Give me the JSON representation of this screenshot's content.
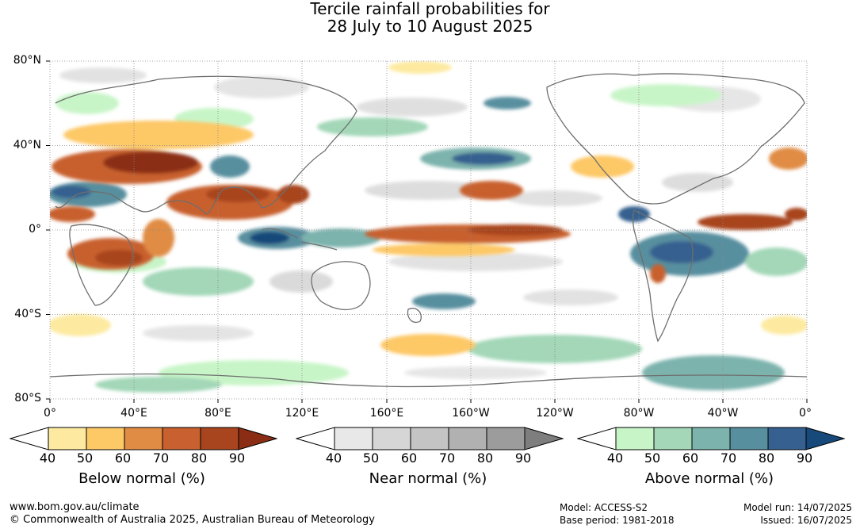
{
  "title": {
    "line1": "Tercile rainfall probabilities for",
    "line2": "28 July to 10 August 2025"
  },
  "axes": {
    "lat_labels": [
      "80°N",
      "40°N",
      "0°",
      "40°S",
      "80°S"
    ],
    "lon_labels": [
      "0°",
      "40°E",
      "80°E",
      "120°E",
      "160°E",
      "160°W",
      "120°W",
      "80°W",
      "40°W",
      "0°"
    ]
  },
  "colorbars": [
    {
      "name": "below",
      "title": "Below normal (%)",
      "ticks": [
        "40",
        "50",
        "60",
        "70",
        "80",
        "90"
      ],
      "colors": [
        "#ffffff",
        "#fdeaa0",
        "#fdc866",
        "#e08c45",
        "#c8602f",
        "#a8451f",
        "#8b2d14"
      ]
    },
    {
      "name": "near",
      "title": "Near normal (%)",
      "ticks": [
        "40",
        "50",
        "60",
        "70",
        "80",
        "90"
      ],
      "colors": [
        "#ffffff",
        "#e8e8e8",
        "#d6d6d6",
        "#c4c4c4",
        "#b1b1b1",
        "#9c9c9c",
        "#7e7e7e"
      ]
    },
    {
      "name": "above",
      "title": "Above normal (%)",
      "ticks": [
        "40",
        "50",
        "60",
        "70",
        "80",
        "90"
      ],
      "colors": [
        "#ffffff",
        "#c8f5c8",
        "#a3d7b8",
        "#7db3ad",
        "#588f9f",
        "#35608f",
        "#174a7a"
      ]
    }
  ],
  "footer": {
    "url": "www.bom.gov.au/climate",
    "copyright": "© Commonwealth of Australia 2025, Australian Bureau of Meteorology",
    "model": "Model: ACCESS-S2",
    "base_period": "Base period: 1981-2018",
    "model_run": "Model run: 14/07/2025",
    "issued": "Issued: 16/07/2025"
  }
}
